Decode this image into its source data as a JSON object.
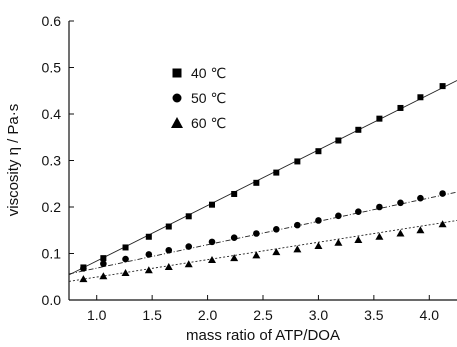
{
  "chart_data": {
    "type": "scatter",
    "xlabel": "mass ratio of ATP/DOA",
    "ylabel": "viscosity η / Pa·s",
    "xlim": [
      0.75,
      4.25
    ],
    "ylim": [
      0.0,
      0.6
    ],
    "xticks": [
      "1.0",
      "1.5",
      "2.0",
      "2.5",
      "3.0",
      "3.5",
      "4.0"
    ],
    "yticks": [
      "0.0",
      "0.1",
      "0.2",
      "0.3",
      "0.4",
      "0.5",
      "0.6"
    ],
    "legend_position": "upper-left",
    "grid": false,
    "series": [
      {
        "name": "40 ℃",
        "marker": "square",
        "line": "solid",
        "x": [
          0.88,
          1.06,
          1.26,
          1.47,
          1.65,
          1.83,
          2.04,
          2.24,
          2.44,
          2.62,
          2.81,
          3.0,
          3.18,
          3.36,
          3.55,
          3.74,
          3.92,
          4.12
        ],
        "y": [
          0.07,
          0.09,
          0.113,
          0.136,
          0.158,
          0.18,
          0.205,
          0.228,
          0.252,
          0.274,
          0.298,
          0.32,
          0.343,
          0.366,
          0.39,
          0.413,
          0.436,
          0.46
        ]
      },
      {
        "name": "50 ℃",
        "marker": "circle",
        "line": "dash-dot",
        "x": [
          0.88,
          1.06,
          1.26,
          1.47,
          1.65,
          1.83,
          2.04,
          2.24,
          2.44,
          2.62,
          2.81,
          3.0,
          3.18,
          3.36,
          3.55,
          3.74,
          3.92,
          4.12
        ],
        "y": [
          0.068,
          0.078,
          0.088,
          0.098,
          0.107,
          0.115,
          0.125,
          0.134,
          0.143,
          0.152,
          0.161,
          0.171,
          0.181,
          0.19,
          0.2,
          0.209,
          0.219,
          0.229
        ]
      },
      {
        "name": "60 ℃",
        "marker": "triangle",
        "line": "dotted",
        "x": [
          0.88,
          1.06,
          1.26,
          1.47,
          1.65,
          1.83,
          2.04,
          2.24,
          2.44,
          2.62,
          2.81,
          3.0,
          3.18,
          3.36,
          3.55,
          3.74,
          3.92,
          4.12
        ],
        "y": [
          0.045,
          0.051,
          0.058,
          0.064,
          0.071,
          0.077,
          0.086,
          0.09,
          0.096,
          0.103,
          0.109,
          0.116,
          0.123,
          0.129,
          0.136,
          0.143,
          0.15,
          0.163
        ]
      }
    ],
    "fit_lines": [
      {
        "series": "40 ℃",
        "x": [
          0.75,
          4.25
        ],
        "y": [
          0.054,
          0.472
        ]
      },
      {
        "series": "50 ℃",
        "x": [
          0.75,
          4.25
        ],
        "y": [
          0.056,
          0.232
        ]
      },
      {
        "series": "60 ℃",
        "x": [
          0.75,
          4.25
        ],
        "y": [
          0.04,
          0.171
        ]
      }
    ]
  }
}
